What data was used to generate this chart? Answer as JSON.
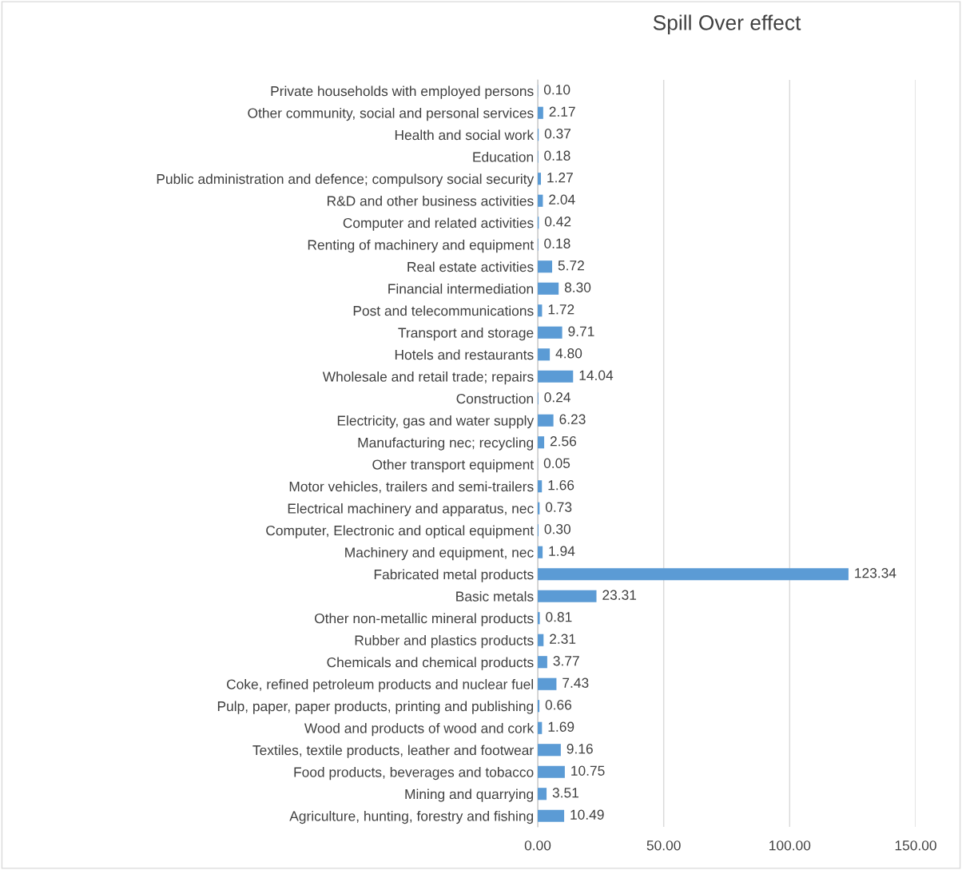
{
  "chart_data": {
    "type": "bar",
    "orientation": "horizontal",
    "title": "Spill Over effect",
    "categories": [
      "Private households with employed persons",
      "Other community, social and personal services",
      "Health and social work",
      "Education",
      "Public administration and defence; compulsory social security",
      "R&D and other business activities",
      "Computer and related activities",
      "Renting of machinery and equipment",
      "Real estate activities",
      "Financial intermediation",
      "Post and telecommunications",
      "Transport and storage",
      "Hotels and restaurants",
      "Wholesale and retail trade; repairs",
      "Construction",
      "Electricity, gas and water supply",
      "Manufacturing nec; recycling",
      "Other transport equipment",
      "Motor vehicles, trailers and semi-trailers",
      "Electrical machinery and apparatus, nec",
      "Computer, Electronic and optical equipment",
      "Machinery and equipment, nec",
      "Fabricated metal products",
      "Basic metals",
      "Other non-metallic mineral products",
      "Rubber and plastics products",
      "Chemicals and chemical products",
      "Coke, refined petroleum products and nuclear fuel",
      "Pulp, paper, paper products, printing and publishing",
      "Wood and products of wood and cork",
      "Textiles, textile products, leather and footwear",
      "Food products, beverages and tobacco",
      "Mining and quarrying",
      "Agriculture, hunting, forestry and fishing"
    ],
    "values": [
      0.1,
      2.17,
      0.37,
      0.18,
      1.27,
      2.04,
      0.42,
      0.18,
      5.72,
      8.3,
      1.72,
      9.71,
      4.8,
      14.04,
      0.24,
      6.23,
      2.56,
      0.05,
      1.66,
      0.73,
      0.3,
      1.94,
      123.34,
      23.31,
      0.81,
      2.31,
      3.77,
      7.43,
      0.66,
      1.69,
      9.16,
      10.75,
      3.51,
      10.49
    ],
    "value_labels": [
      "0.10",
      "2.17",
      "0.37",
      "0.18",
      "1.27",
      "2.04",
      "0.42",
      "0.18",
      "5.72",
      "8.30",
      "1.72",
      "9.71",
      "4.80",
      "14.04",
      "0.24",
      "6.23",
      "2.56",
      "0.05",
      "1.66",
      "0.73",
      "0.30",
      "1.94",
      "123.34",
      "23.31",
      "0.81",
      "2.31",
      "3.77",
      "7.43",
      "0.66",
      "1.69",
      "9.16",
      "10.75",
      "3.51",
      "10.49"
    ],
    "color": "#5b9bd5",
    "xlim": [
      0,
      150
    ],
    "xticks": [
      {
        "value": 0,
        "label": "0.00"
      },
      {
        "value": 50,
        "label": "50.00"
      },
      {
        "value": 100,
        "label": "100.00"
      },
      {
        "value": 150,
        "label": "150.00"
      }
    ],
    "grid": "x",
    "legend": false
  }
}
